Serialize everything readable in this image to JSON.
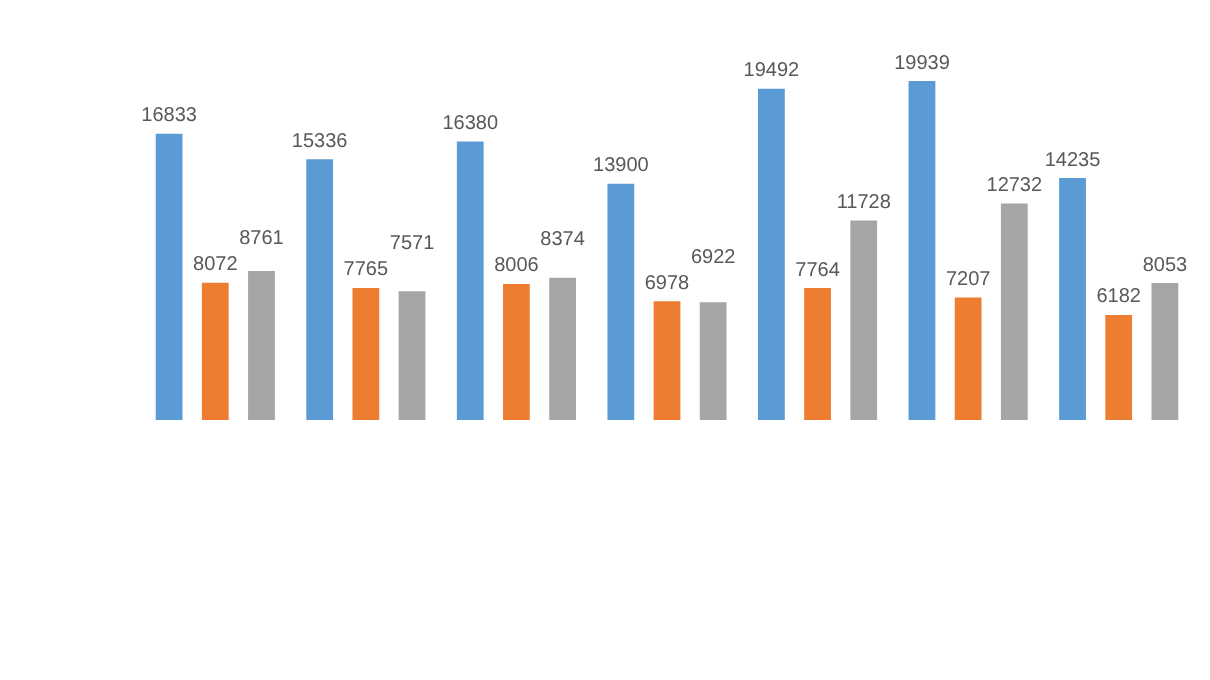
{
  "chart_data": {
    "type": "bar",
    "categories": [
      null,
      null,
      null,
      null,
      null,
      null,
      null
    ],
    "series": [
      {
        "color": "#5b9bd5",
        "values": [
          16833,
          15336,
          16380,
          13900,
          19492,
          19939,
          14235
        ]
      },
      {
        "color": "#ed7d31",
        "values": [
          8072,
          7765,
          8006,
          6978,
          7764,
          7207,
          6182
        ]
      },
      {
        "color": "#a5a5a5",
        "values": [
          8761,
          7571,
          8374,
          6922,
          11728,
          12732,
          8053
        ]
      }
    ],
    "data_labels": true,
    "legend": false,
    "tick_labels": false
  }
}
